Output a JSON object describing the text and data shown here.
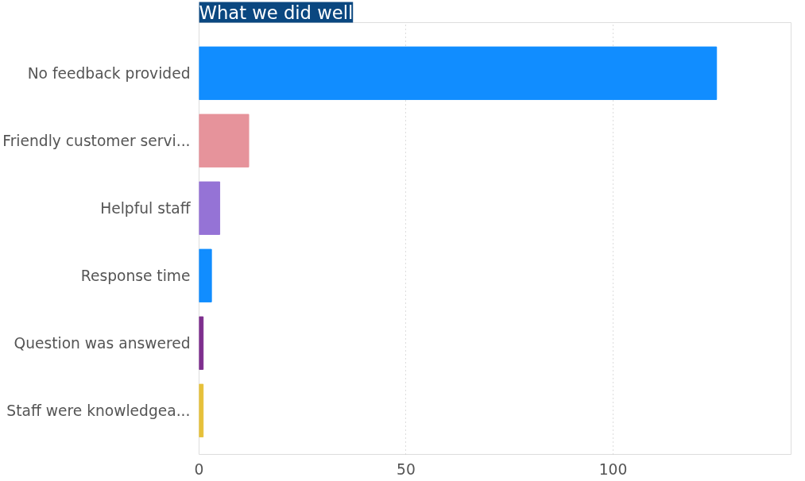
{
  "chart_data": {
    "type": "bar",
    "orientation": "horizontal",
    "title": "What we did well",
    "categories": [
      "No feedback provided",
      "Friendly customer servi...",
      "Helpful staff",
      "Response time",
      "Question was answered",
      "Staff were knowledgea..."
    ],
    "values": [
      125,
      12,
      5,
      3,
      1,
      1
    ],
    "colors": [
      "#118dff",
      "#e6939b",
      "#9573d6",
      "#118dff",
      "#7e2f8e",
      "#e6c13a"
    ],
    "xlim": [
      0,
      143
    ],
    "xticks": [
      0,
      50,
      100
    ],
    "grid": "x"
  }
}
